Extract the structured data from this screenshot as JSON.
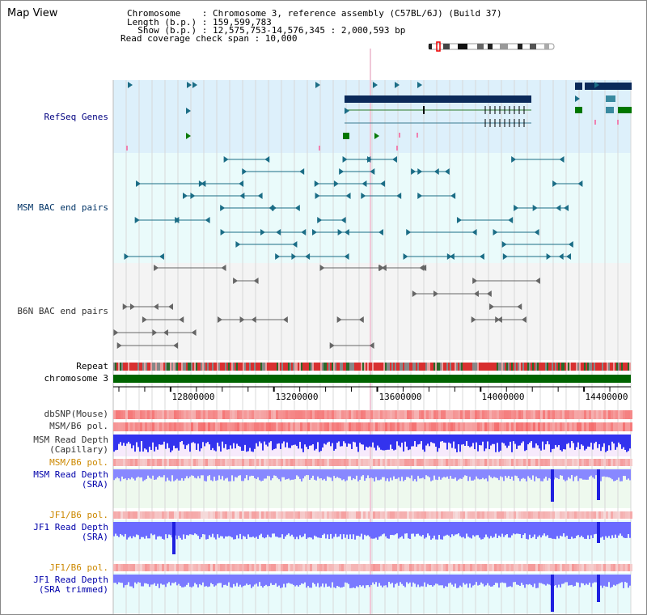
{
  "title": "Map View",
  "info": {
    "chromosome": "Chromosome    : Chromosome 3, reference assembly (C57BL/6J) (Build 37)",
    "length": "Length (b.p.) : 159,599,783",
    "show": "  Show (b.p.) : 12,575,753-14,576,345 : 2,000,593 bp",
    "coverage": "Read coverage check span : 10,000"
  },
  "tracks": {
    "refseq": "RefSeq Genes",
    "msm_bac": "MSM BAC end pairs",
    "b6n_bac": "B6N BAC end pairs",
    "repeat": "Repeat",
    "chromosome": "chromosome 3",
    "dbsnp": "dbSNP(Mouse)",
    "msm_pol1": "MSM/B6 pol.",
    "msm_cap": "MSM Read Depth\n(Capillary)",
    "msm_pol2": "MSM/B6 pol.",
    "msm_sra": "MSM Read Depth\n(SRA)",
    "jf1_pol1": "JF1/B6 pol.",
    "jf1_sra": "JF1 Read Depth\n(SRA)",
    "jf1_pol2": "JF1/B6 pol.",
    "jf1_trim": "JF1 Read Depth\n(SRA trimmed)"
  },
  "ruler": {
    "ticks": [
      "12800000",
      "13200000",
      "13600000",
      "14000000",
      "14400000"
    ]
  },
  "colors": {
    "refseq_label": "#000080",
    "msm_label": "#003366",
    "b6n_label": "#333333",
    "pol_orange": "#cc8800",
    "sra_blue": "#0000aa",
    "gene_navy": "#0b2a5a",
    "bac_teal": "#1b6d86",
    "depth_blue": "#3a3aff",
    "chrom_green": "#006400"
  }
}
